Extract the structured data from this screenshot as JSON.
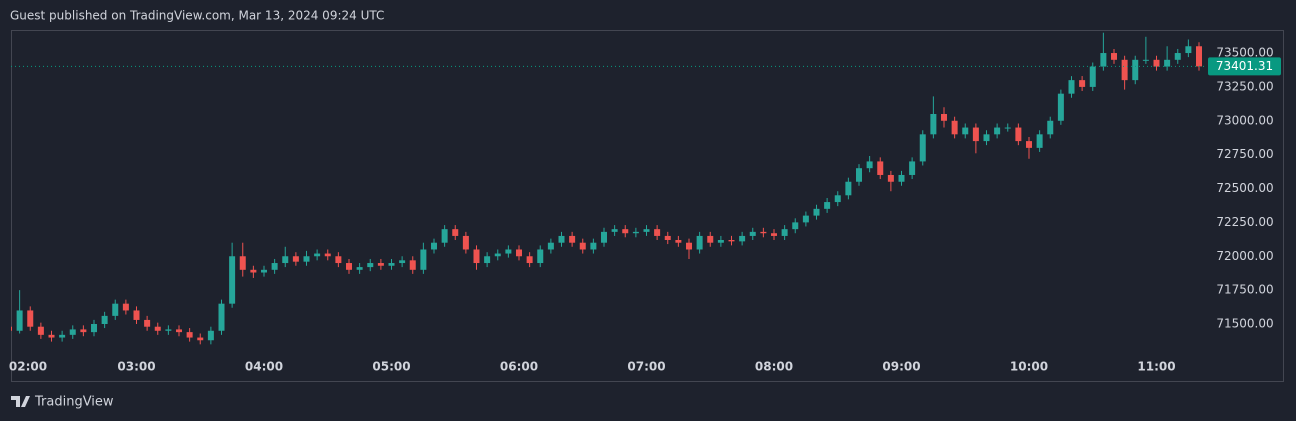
{
  "header": {
    "title": "Guest published on TradingView.com, Mar 13, 2024 09:24 UTC"
  },
  "footer": {
    "brand": "TradingView"
  },
  "chart_data": {
    "type": "candlestick",
    "categories": [
      "02:00",
      null,
      null,
      null,
      null,
      null,
      null,
      null,
      null,
      null,
      null,
      null,
      "03:00",
      null,
      null,
      null,
      null,
      null,
      null,
      null,
      null,
      null,
      null,
      null,
      "04:00",
      null,
      null,
      null,
      null,
      null,
      null,
      null,
      null,
      null,
      null,
      null,
      "05:00",
      null,
      null,
      null,
      null,
      null,
      null,
      null,
      null,
      null,
      null,
      null,
      "06:00",
      null,
      null,
      null,
      null,
      null,
      null,
      null,
      null,
      null,
      null,
      null,
      "07:00",
      null,
      null,
      null,
      null,
      null,
      null,
      null,
      null,
      null,
      null,
      null,
      "08:00",
      null,
      null,
      null,
      null,
      null,
      null,
      null,
      null,
      null,
      null,
      null,
      "09:00",
      null,
      null,
      null,
      null,
      null,
      null,
      null,
      null,
      null,
      null,
      null,
      "10:00",
      null,
      null,
      null,
      null,
      null,
      null,
      null,
      null,
      null,
      null,
      null,
      "11:00",
      null,
      null,
      null,
      null
    ],
    "open": [
      71480,
      71450,
      71600,
      71480,
      71420,
      71400,
      71420,
      71460,
      71440,
      71500,
      71560,
      71650,
      71600,
      71530,
      71480,
      71450,
      71460,
      71440,
      71400,
      71380,
      71450,
      71650,
      72000,
      71900,
      71880,
      71900,
      71950,
      72000,
      71960,
      72000,
      72020,
      72000,
      71950,
      71900,
      71920,
      71950,
      71930,
      71950,
      71970,
      71900,
      72050,
      72100,
      72200,
      72150,
      72050,
      71950,
      72000,
      72020,
      72050,
      72000,
      71950,
      72050,
      72100,
      72150,
      72100,
      72050,
      72100,
      72180,
      72200,
      72170,
      72180,
      72200,
      72150,
      72120,
      72100,
      72050,
      72150,
      72100,
      72120,
      72110,
      72150,
      72180,
      72170,
      72150,
      72200,
      72250,
      72300,
      72350,
      72400,
      72450,
      72550,
      72650,
      72700,
      72600,
      72550,
      72600,
      72700,
      72900,
      73050,
      73000,
      72900,
      72950,
      72850,
      72900,
      72950,
      72950,
      72850,
      72800,
      72900,
      73000,
      73200,
      73300,
      73250,
      73400,
      73500,
      73450,
      73300,
      73450,
      73450,
      73400,
      73450,
      73500,
      73550
    ],
    "high": [
      71510,
      71750,
      71630,
      71510,
      71450,
      71450,
      71490,
      71490,
      71530,
      71590,
      71680,
      71680,
      71630,
      71560,
      71510,
      71490,
      71490,
      71470,
      71430,
      71480,
      71680,
      72100,
      72100,
      71930,
      71930,
      71980,
      72070,
      72030,
      72040,
      72050,
      72050,
      72030,
      71980,
      71950,
      71980,
      71980,
      71980,
      72000,
      72000,
      72100,
      72130,
      72230,
      72230,
      72180,
      72080,
      72030,
      72050,
      72080,
      72080,
      72030,
      72080,
      72130,
      72180,
      72180,
      72130,
      72130,
      72210,
      72230,
      72230,
      72210,
      72230,
      72230,
      72180,
      72150,
      72130,
      72180,
      72180,
      72150,
      72150,
      72180,
      72210,
      72210,
      72200,
      72230,
      72280,
      72330,
      72380,
      72430,
      72480,
      72580,
      72680,
      72740,
      72730,
      72630,
      72630,
      72730,
      72930,
      73180,
      73100,
      73030,
      72980,
      72980,
      72930,
      72980,
      72980,
      72980,
      72880,
      72930,
      73030,
      73230,
      73330,
      73330,
      73430,
      73650,
      73530,
      73480,
      73480,
      73620,
      73480,
      73550,
      73530,
      73600,
      73580
    ],
    "low": [
      71420,
      71430,
      71450,
      71390,
      71370,
      71370,
      71390,
      71410,
      71410,
      71470,
      71530,
      71570,
      71500,
      71450,
      71420,
      71420,
      71410,
      71370,
      71350,
      71350,
      71420,
      71620,
      71850,
      71840,
      71850,
      71870,
      71920,
      71930,
      71930,
      71970,
      71970,
      71920,
      71870,
      71870,
      71890,
      71900,
      71900,
      71920,
      71870,
      71870,
      72020,
      72070,
      72120,
      72020,
      71900,
      71920,
      71970,
      71990,
      71970,
      71920,
      71920,
      72020,
      72070,
      72070,
      72020,
      72020,
      72070,
      72150,
      72140,
      72140,
      72150,
      72120,
      72090,
      72070,
      71980,
      72020,
      72070,
      72070,
      72080,
      72080,
      72120,
      72140,
      72120,
      72120,
      72170,
      72220,
      72270,
      72320,
      72370,
      72420,
      72520,
      72620,
      72570,
      72480,
      72520,
      72570,
      72670,
      72870,
      72950,
      72870,
      72870,
      72760,
      72820,
      72870,
      72920,
      72820,
      72720,
      72770,
      72870,
      72970,
      73170,
      73220,
      73220,
      73370,
      73420,
      73230,
      73270,
      73420,
      73370,
      73370,
      73420,
      73470,
      73370
    ],
    "close": [
      71450,
      71600,
      71480,
      71420,
      71400,
      71420,
      71460,
      71440,
      71500,
      71560,
      71650,
      71600,
      71530,
      71480,
      71450,
      71460,
      71440,
      71400,
      71380,
      71450,
      71650,
      72000,
      71900,
      71880,
      71900,
      71950,
      72000,
      71960,
      72000,
      72020,
      72000,
      71950,
      71900,
      71920,
      71950,
      71930,
      71950,
      71970,
      71900,
      72050,
      72100,
      72200,
      72150,
      72050,
      71950,
      72000,
      72020,
      72050,
      72000,
      71950,
      72050,
      72100,
      72150,
      72100,
      72050,
      72100,
      72180,
      72200,
      72170,
      72180,
      72200,
      72150,
      72120,
      72100,
      72050,
      72150,
      72100,
      72120,
      72110,
      72150,
      72180,
      72170,
      72150,
      72200,
      72250,
      72300,
      72350,
      72400,
      72450,
      72550,
      72650,
      72700,
      72600,
      72550,
      72600,
      72700,
      72900,
      73050,
      73000,
      72900,
      72950,
      72850,
      72900,
      72950,
      72950,
      72850,
      72800,
      72900,
      73000,
      73200,
      73300,
      73250,
      73400,
      73500,
      73450,
      73300,
      73450,
      73450,
      73400,
      73450,
      73500,
      73550,
      73401.31
    ],
    "up_color": "#26a69a",
    "down_color": "#ef5350",
    "last_price_color": "#089981",
    "ylim": [
      71345,
      73670
    ],
    "yticks": [
      {
        "value": 71500,
        "label": "71500.00"
      },
      {
        "value": 71750,
        "label": "71750.00"
      },
      {
        "value": 72000,
        "label": "72000.00"
      },
      {
        "value": 72250,
        "label": "72250.00"
      },
      {
        "value": 72500,
        "label": "72500.00"
      },
      {
        "value": 72750,
        "label": "72750.00"
      },
      {
        "value": 73000,
        "label": "73000.00"
      },
      {
        "value": 73250,
        "label": "73250.00"
      },
      {
        "value": 73500,
        "label": "73500.00"
      }
    ],
    "grid": false
  }
}
